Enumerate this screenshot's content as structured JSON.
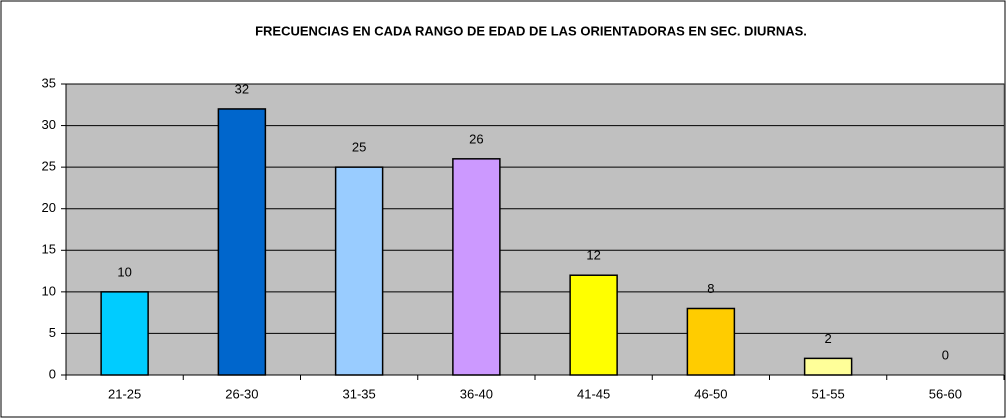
{
  "chart_data": {
    "type": "bar",
    "title": "FRECUENCIAS EN CADA RANGO DE EDAD DE LAS ORIENTADORAS EN SEC. DIURNAS.",
    "categories": [
      "21-25",
      "26-30",
      "31-35",
      "36-40",
      "41-45",
      "46-50",
      "51-55",
      "56-60"
    ],
    "values": [
      10,
      32,
      25,
      26,
      12,
      8,
      2,
      0
    ],
    "colors": [
      "#00ccff",
      "#0066cc",
      "#99ccff",
      "#cc99ff",
      "#ffff00",
      "#ffcc00",
      "#ffff99",
      "#ffffff"
    ],
    "ylim": [
      0,
      35
    ],
    "yticks": [
      0,
      5,
      10,
      15,
      20,
      25,
      30,
      35
    ],
    "grid": true,
    "plot_background": "#c0c0c0"
  }
}
